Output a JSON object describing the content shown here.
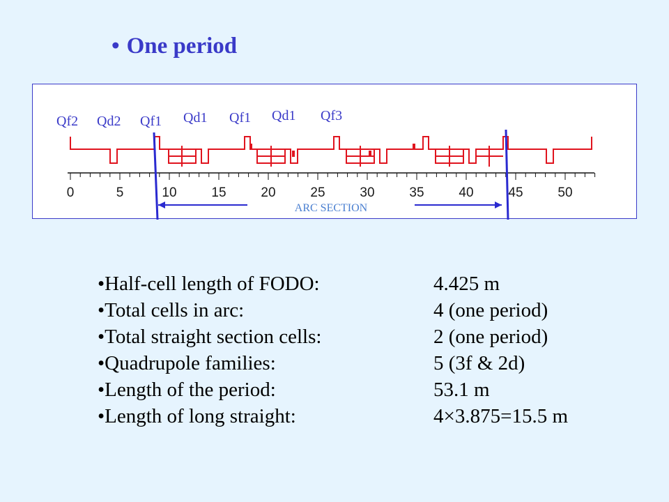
{
  "title": {
    "bullet": "•",
    "text": "One period"
  },
  "diagram": {
    "quad_labels": [
      "Qf2",
      "Qd2",
      "Qf1",
      "Qd1",
      "Qf1",
      "Qd1",
      "Qf3"
    ],
    "axis": {
      "min": 0,
      "max": 53.1,
      "major_ticks": [
        0,
        5,
        10,
        15,
        20,
        25,
        30,
        35,
        40,
        45,
        50
      ],
      "minor_step": 1
    },
    "arc_label": "ARC SECTION",
    "arc_boundaries_m": [
      8.85,
      44.25
    ],
    "colors": {
      "lattice": "#e0141e",
      "marker": "#2a2ad0",
      "label": "#3a3ac8",
      "arc": "#4a7fd0"
    }
  },
  "params": [
    {
      "label": "•Half-cell length of FODO:",
      "value": "4.425 m"
    },
    {
      "label": "•Total cells in arc:",
      "value": "4 (one period)"
    },
    {
      "label": "•Total straight section cells:",
      "value": "2 (one period)"
    },
    {
      "label": "•Quadrupole families:",
      "value": "5 (3f & 2d)"
    },
    {
      "label": "•Length of the period:",
      "value": "53.1 m"
    },
    {
      "label": "•Length of long straight:",
      "value": "4×3.875=15.5 m"
    }
  ]
}
